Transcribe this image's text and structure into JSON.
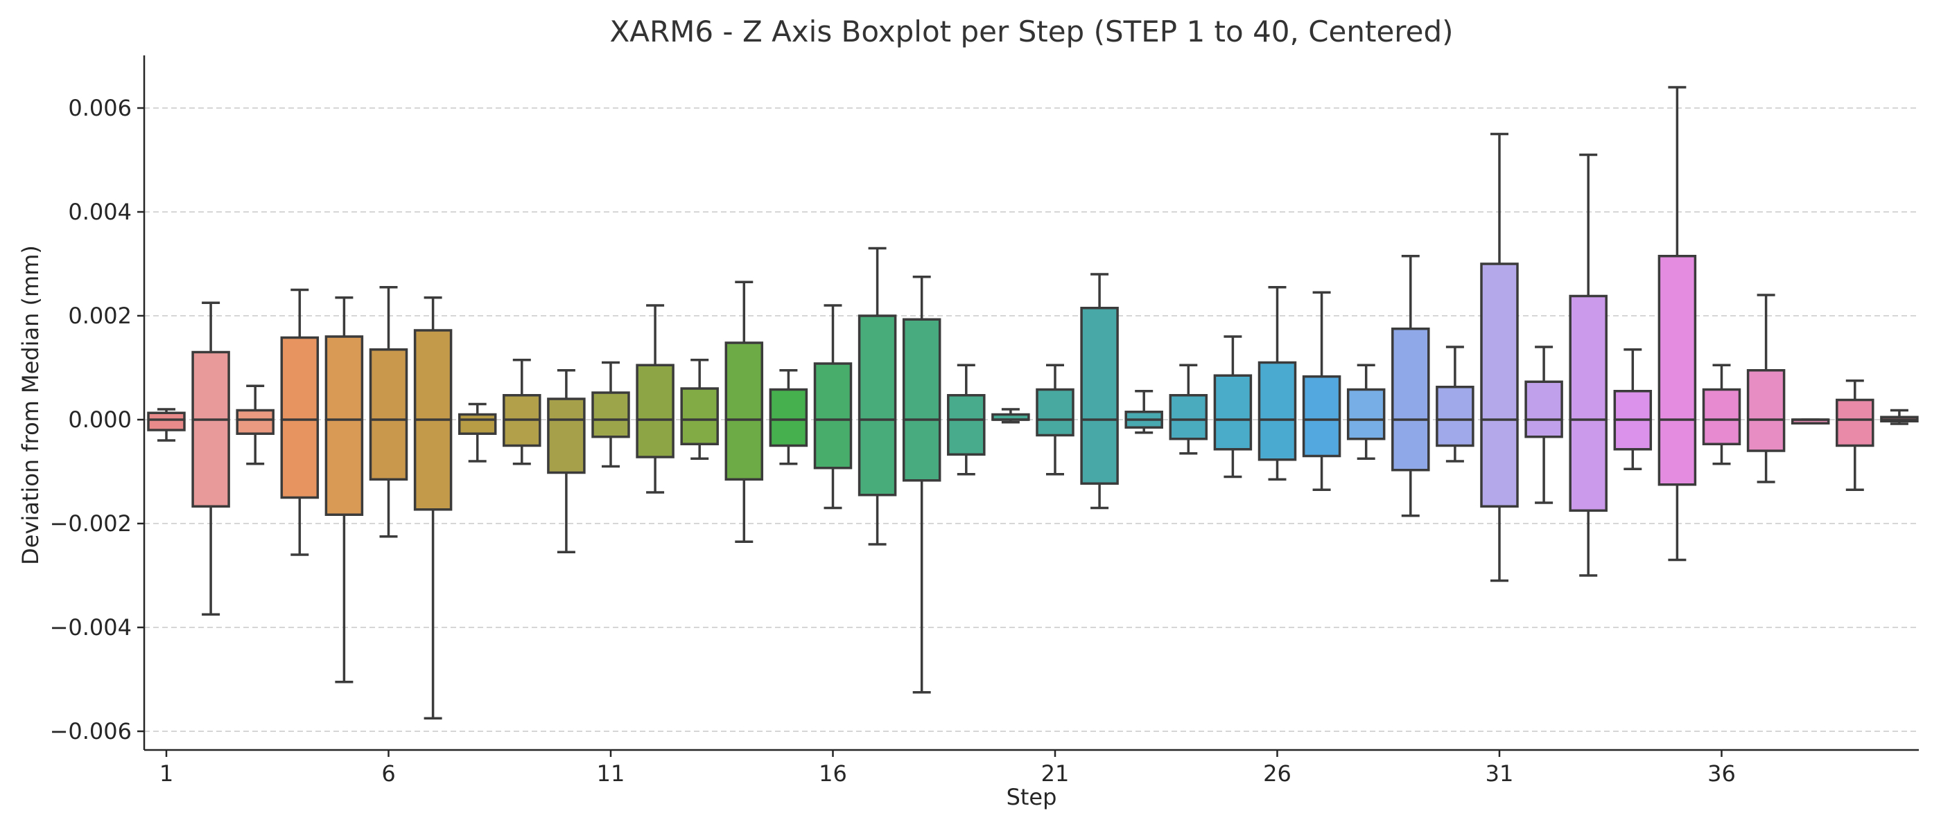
{
  "chart_data": {
    "type": "boxplot",
    "title": "XARM6 - Z Axis Boxplot per Step (STEP 1 to 40, Centered)",
    "xlabel": "Step",
    "ylabel": "Deviation from Median (mm)",
    "ylim": [
      -0.0063,
      0.007
    ],
    "yticks": [
      -0.006,
      -0.004,
      -0.002,
      0.0,
      0.002,
      0.004,
      0.006
    ],
    "ytick_labels": [
      "−0.006",
      "−0.004",
      "−0.002",
      "0.000",
      "0.002",
      "0.004",
      "0.006"
    ],
    "xticks": [
      1,
      6,
      11,
      16,
      21,
      26,
      31,
      36
    ],
    "xtick_labels": [
      "1",
      "6",
      "11",
      "16",
      "21",
      "26",
      "31",
      "36"
    ],
    "grid": "y",
    "steps": [
      {
        "step": 1,
        "whislo": -0.0004,
        "q1": -0.0002,
        "med": 0.0,
        "q3": 0.00013,
        "whishi": 0.0002,
        "color": "#e88a8a"
      },
      {
        "step": 2,
        "whislo": -0.00375,
        "q1": -0.00167,
        "med": 0.0,
        "q3": 0.0013,
        "whishi": 0.00225,
        "color": "#e89a9a"
      },
      {
        "step": 3,
        "whislo": -0.00085,
        "q1": -0.00027,
        "med": 0.0,
        "q3": 0.00018,
        "whishi": 0.00065,
        "color": "#ea9a80"
      },
      {
        "step": 4,
        "whislo": -0.0026,
        "q1": -0.0015,
        "med": 0.0,
        "q3": 0.00158,
        "whishi": 0.0025,
        "color": "#e89460"
      },
      {
        "step": 5,
        "whislo": -0.00505,
        "q1": -0.00183,
        "med": 0.0,
        "q3": 0.0016,
        "whishi": 0.00235,
        "color": "#d99a55"
      },
      {
        "step": 6,
        "whislo": -0.00225,
        "q1": -0.00115,
        "med": 0.0,
        "q3": 0.00135,
        "whishi": 0.00255,
        "color": "#c9984c"
      },
      {
        "step": 7,
        "whislo": -0.00575,
        "q1": -0.00173,
        "med": 0.0,
        "q3": 0.00172,
        "whishi": 0.00235,
        "color": "#c39a4a"
      },
      {
        "step": 8,
        "whislo": -0.0008,
        "q1": -0.00027,
        "med": 0.0,
        "q3": 0.0001,
        "whishi": 0.0003,
        "color": "#b79c45"
      },
      {
        "step": 9,
        "whislo": -0.00085,
        "q1": -0.0005,
        "med": 0.0,
        "q3": 0.00047,
        "whishi": 0.00115,
        "color": "#b2a04a"
      },
      {
        "step": 10,
        "whislo": -0.00255,
        "q1": -0.00102,
        "med": 0.0,
        "q3": 0.0004,
        "whishi": 0.00095,
        "color": "#a6a04a"
      },
      {
        "step": 11,
        "whislo": -0.0009,
        "q1": -0.00033,
        "med": 0.0,
        "q3": 0.00052,
        "whishi": 0.0011,
        "color": "#9ca54a"
      },
      {
        "step": 12,
        "whislo": -0.0014,
        "q1": -0.00072,
        "med": 0.0,
        "q3": 0.00105,
        "whishi": 0.0022,
        "color": "#8ea545"
      },
      {
        "step": 13,
        "whislo": -0.00075,
        "q1": -0.00047,
        "med": 0.0,
        "q3": 0.0006,
        "whishi": 0.00115,
        "color": "#82ab45"
      },
      {
        "step": 14,
        "whislo": -0.00235,
        "q1": -0.00115,
        "med": 0.0,
        "q3": 0.00148,
        "whishi": 0.00265,
        "color": "#6cab45"
      },
      {
        "step": 15,
        "whislo": -0.00085,
        "q1": -0.0005,
        "med": 0.0,
        "q3": 0.00058,
        "whishi": 0.00095,
        "color": "#45b04d"
      },
      {
        "step": 16,
        "whislo": -0.0017,
        "q1": -0.00093,
        "med": 0.0,
        "q3": 0.00108,
        "whishi": 0.0022,
        "color": "#48ad6a"
      },
      {
        "step": 17,
        "whislo": -0.0024,
        "q1": -0.00145,
        "med": 0.0,
        "q3": 0.002,
        "whishi": 0.0033,
        "color": "#48ab7a"
      },
      {
        "step": 18,
        "whislo": -0.00525,
        "q1": -0.00117,
        "med": 0.0,
        "q3": 0.00193,
        "whishi": 0.00275,
        "color": "#48ab80"
      },
      {
        "step": 19,
        "whislo": -0.00105,
        "q1": -0.00067,
        "med": 0.0,
        "q3": 0.00047,
        "whishi": 0.00105,
        "color": "#48ac8c"
      },
      {
        "step": 20,
        "whislo": -5e-05,
        "q1": 0.0,
        "med": 0.0,
        "q3": 0.0001,
        "whishi": 0.0002,
        "color": "#48ab95"
      },
      {
        "step": 21,
        "whislo": -0.00105,
        "q1": -0.0003,
        "med": 0.0,
        "q3": 0.00058,
        "whishi": 0.00105,
        "color": "#48a9a0"
      },
      {
        "step": 22,
        "whislo": -0.0017,
        "q1": -0.00123,
        "med": 0.0,
        "q3": 0.00215,
        "whishi": 0.0028,
        "color": "#48a8a8"
      },
      {
        "step": 23,
        "whislo": -0.00025,
        "q1": -0.00015,
        "med": 0.0,
        "q3": 0.00015,
        "whishi": 0.00055,
        "color": "#48a9b0"
      },
      {
        "step": 24,
        "whislo": -0.00065,
        "q1": -0.00037,
        "med": 0.0,
        "q3": 0.00047,
        "whishi": 0.00105,
        "color": "#4aabbe"
      },
      {
        "step": 25,
        "whislo": -0.0011,
        "q1": -0.00057,
        "med": 0.0,
        "q3": 0.00085,
        "whishi": 0.0016,
        "color": "#4aacc8"
      },
      {
        "step": 26,
        "whislo": -0.00115,
        "q1": -0.00077,
        "med": 0.0,
        "q3": 0.0011,
        "whishi": 0.00255,
        "color": "#4aaacf"
      },
      {
        "step": 27,
        "whislo": -0.00135,
        "q1": -0.0007,
        "med": 0.0,
        "q3": 0.00083,
        "whishi": 0.00245,
        "color": "#52a8df"
      },
      {
        "step": 28,
        "whislo": -0.00075,
        "q1": -0.00037,
        "med": 0.0,
        "q3": 0.00058,
        "whishi": 0.00105,
        "color": "#78aee6"
      },
      {
        "step": 29,
        "whislo": -0.00185,
        "q1": -0.00097,
        "med": 0.0,
        "q3": 0.00175,
        "whishi": 0.00315,
        "color": "#8ea8e8"
      },
      {
        "step": 30,
        "whislo": -0.0008,
        "q1": -0.0005,
        "med": 0.0,
        "q3": 0.00063,
        "whishi": 0.0014,
        "color": "#a0aaea"
      },
      {
        "step": 31,
        "whislo": -0.0031,
        "q1": -0.00167,
        "med": 0.0,
        "q3": 0.003,
        "whishi": 0.0055,
        "color": "#b4a8ea"
      },
      {
        "step": 32,
        "whislo": -0.0016,
        "q1": -0.00033,
        "med": 0.0,
        "q3": 0.00073,
        "whishi": 0.0014,
        "color": "#c0a0ea"
      },
      {
        "step": 33,
        "whislo": -0.003,
        "q1": -0.00175,
        "med": 0.0,
        "q3": 0.00238,
        "whishi": 0.0051,
        "color": "#cc9aea"
      },
      {
        "step": 34,
        "whislo": -0.00095,
        "q1": -0.00057,
        "med": 0.0,
        "q3": 0.00055,
        "whishi": 0.00135,
        "color": "#da92ea"
      },
      {
        "step": 35,
        "whislo": -0.0027,
        "q1": -0.00125,
        "med": 0.0,
        "q3": 0.00315,
        "whishi": 0.0064,
        "color": "#e38ce0"
      },
      {
        "step": 36,
        "whislo": -0.00085,
        "q1": -0.00047,
        "med": 0.0,
        "q3": 0.00058,
        "whishi": 0.00105,
        "color": "#e88ad0"
      },
      {
        "step": 37,
        "whislo": -0.0012,
        "q1": -0.0006,
        "med": 0.0,
        "q3": 0.00095,
        "whishi": 0.0024,
        "color": "#e88cc4"
      },
      {
        "step": 38,
        "whislo": -7e-05,
        "q1": -7e-05,
        "med": 0.0,
        "q3": 0.0,
        "whishi": 0.0,
        "color": "#e88cb5"
      },
      {
        "step": 39,
        "whislo": -0.00135,
        "q1": -0.0005,
        "med": 0.0,
        "q3": 0.00038,
        "whishi": 0.00075,
        "color": "#e88aa8"
      },
      {
        "step": 40,
        "whislo": -8e-05,
        "q1": -3e-05,
        "med": 0.0,
        "q3": 5e-05,
        "whishi": 0.00018,
        "color": "#e88a9c"
      }
    ]
  }
}
